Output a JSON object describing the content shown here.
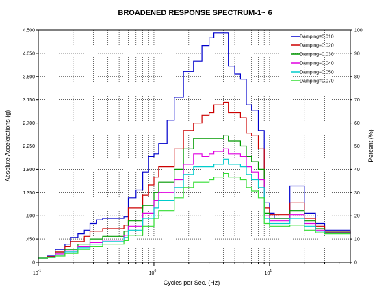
{
  "chart_data": {
    "type": "line",
    "title": "BROADENED RESPONSE SPECTRUM-1~ 6",
    "xlabel": "Cycles per Sec. (Hz)",
    "ylabel": "Absolute Accelerations (g)",
    "y2label": "Percent (%)",
    "xscale": "log",
    "xlim": [
      0.1,
      50
    ],
    "ylim": [
      0,
      4.5
    ],
    "y2lim": [
      0,
      100
    ],
    "grid": true,
    "legend_position": "top-right",
    "x_ticks": [
      {
        "value": 0.1,
        "base": "10",
        "exp": "-1"
      },
      {
        "value": 1,
        "base": "10",
        "exp": "0"
      },
      {
        "value": 10,
        "base": "10",
        "exp": "1"
      }
    ],
    "y_ticks": [
      "0",
      ".450",
      ".900",
      "1.350",
      "1.800",
      "2.250",
      "2.700",
      "3.150",
      "3.600",
      "4.050",
      "4.500"
    ],
    "y2_ticks": [
      "0",
      "10",
      "20",
      "30",
      "40",
      "50",
      "60",
      "70",
      "80",
      "90",
      "100"
    ],
    "series": [
      {
        "name": "Damping=0.010",
        "color": "#0000cc",
        "points": [
          [
            0.1,
            0.08
          ],
          [
            0.12,
            0.12
          ],
          [
            0.14,
            0.25
          ],
          [
            0.17,
            0.35
          ],
          [
            0.19,
            0.48
          ],
          [
            0.22,
            0.55
          ],
          [
            0.25,
            0.62
          ],
          [
            0.28,
            0.75
          ],
          [
            0.32,
            0.82
          ],
          [
            0.36,
            0.85
          ],
          [
            0.55,
            0.88
          ],
          [
            0.6,
            1.25
          ],
          [
            0.7,
            1.4
          ],
          [
            0.8,
            1.75
          ],
          [
            0.9,
            2.05
          ],
          [
            1.0,
            2.1
          ],
          [
            1.1,
            2.3
          ],
          [
            1.3,
            2.75
          ],
          [
            1.5,
            3.2
          ],
          [
            1.8,
            3.7
          ],
          [
            2.2,
            3.9
          ],
          [
            2.6,
            4.2
          ],
          [
            3.0,
            4.35
          ],
          [
            3.3,
            4.45
          ],
          [
            4.0,
            4.45
          ],
          [
            4.4,
            3.8
          ],
          [
            5.0,
            3.65
          ],
          [
            5.6,
            3.55
          ],
          [
            6.3,
            3.05
          ],
          [
            7.0,
            2.95
          ],
          [
            8.0,
            2.55
          ],
          [
            9.0,
            1.15
          ],
          [
            10.0,
            0.95
          ],
          [
            11.0,
            0.85
          ],
          [
            15.0,
            1.48
          ],
          [
            20.0,
            0.95
          ],
          [
            25.0,
            0.75
          ],
          [
            30.0,
            0.62
          ],
          [
            50.0,
            0.55
          ]
        ]
      },
      {
        "name": "Damping=0.020",
        "color": "#cc0000",
        "points": [
          [
            0.1,
            0.08
          ],
          [
            0.12,
            0.11
          ],
          [
            0.14,
            0.2
          ],
          [
            0.17,
            0.3
          ],
          [
            0.19,
            0.4
          ],
          [
            0.25,
            0.5
          ],
          [
            0.28,
            0.6
          ],
          [
            0.36,
            0.65
          ],
          [
            0.55,
            0.72
          ],
          [
            0.6,
            1.05
          ],
          [
            0.8,
            1.3
          ],
          [
            0.9,
            1.5
          ],
          [
            1.0,
            1.65
          ],
          [
            1.1,
            1.85
          ],
          [
            1.5,
            2.2
          ],
          [
            1.8,
            2.55
          ],
          [
            2.2,
            2.7
          ],
          [
            2.6,
            2.85
          ],
          [
            3.0,
            2.9
          ],
          [
            3.3,
            3.05
          ],
          [
            4.0,
            3.1
          ],
          [
            4.4,
            2.9
          ],
          [
            5.6,
            2.8
          ],
          [
            6.3,
            2.5
          ],
          [
            7.0,
            2.45
          ],
          [
            8.0,
            2.2
          ],
          [
            9.0,
            1.05
          ],
          [
            10.0,
            0.92
          ],
          [
            15.0,
            1.15
          ],
          [
            20.0,
            0.85
          ],
          [
            25.0,
            0.7
          ],
          [
            30.0,
            0.6
          ],
          [
            50.0,
            0.55
          ]
        ]
      },
      {
        "name": "Damping=0.030",
        "color": "#009900",
        "points": [
          [
            0.1,
            0.08
          ],
          [
            0.12,
            0.1
          ],
          [
            0.14,
            0.18
          ],
          [
            0.17,
            0.25
          ],
          [
            0.22,
            0.35
          ],
          [
            0.28,
            0.45
          ],
          [
            0.36,
            0.5
          ],
          [
            0.55,
            0.6
          ],
          [
            0.6,
            0.8
          ],
          [
            0.8,
            1.1
          ],
          [
            1.0,
            1.35
          ],
          [
            1.1,
            1.55
          ],
          [
            1.5,
            1.8
          ],
          [
            1.8,
            2.2
          ],
          [
            2.2,
            2.4
          ],
          [
            4.0,
            2.45
          ],
          [
            4.4,
            2.35
          ],
          [
            5.6,
            2.25
          ],
          [
            6.3,
            2.05
          ],
          [
            7.0,
            1.95
          ],
          [
            8.0,
            1.8
          ],
          [
            9.0,
            0.95
          ],
          [
            10.0,
            0.85
          ],
          [
            15.0,
            1.0
          ],
          [
            20.0,
            0.8
          ],
          [
            25.0,
            0.65
          ],
          [
            30.0,
            0.58
          ],
          [
            50.0,
            0.55
          ]
        ]
      },
      {
        "name": "Damping=0.040",
        "color": "#e000e0",
        "points": [
          [
            0.1,
            0.08
          ],
          [
            0.12,
            0.1
          ],
          [
            0.14,
            0.16
          ],
          [
            0.17,
            0.22
          ],
          [
            0.22,
            0.3
          ],
          [
            0.28,
            0.38
          ],
          [
            0.36,
            0.43
          ],
          [
            0.55,
            0.52
          ],
          [
            0.6,
            0.7
          ],
          [
            0.8,
            0.95
          ],
          [
            1.0,
            1.2
          ],
          [
            1.1,
            1.35
          ],
          [
            1.5,
            1.6
          ],
          [
            1.8,
            1.9
          ],
          [
            2.2,
            2.1
          ],
          [
            2.6,
            2.05
          ],
          [
            3.0,
            2.1
          ],
          [
            3.3,
            2.15
          ],
          [
            4.0,
            2.2
          ],
          [
            4.4,
            2.1
          ],
          [
            5.6,
            2.05
          ],
          [
            6.3,
            1.85
          ],
          [
            7.0,
            1.75
          ],
          [
            8.0,
            1.6
          ],
          [
            9.0,
            0.9
          ],
          [
            10.0,
            0.8
          ],
          [
            15.0,
            0.92
          ],
          [
            20.0,
            0.75
          ],
          [
            25.0,
            0.62
          ],
          [
            30.0,
            0.57
          ],
          [
            50.0,
            0.55
          ]
        ]
      },
      {
        "name": "Damping=0.050",
        "color": "#00cccc",
        "points": [
          [
            0.1,
            0.08
          ],
          [
            0.12,
            0.09
          ],
          [
            0.14,
            0.14
          ],
          [
            0.17,
            0.2
          ],
          [
            0.22,
            0.28
          ],
          [
            0.28,
            0.35
          ],
          [
            0.36,
            0.4
          ],
          [
            0.55,
            0.48
          ],
          [
            0.6,
            0.62
          ],
          [
            0.8,
            0.85
          ],
          [
            1.0,
            1.05
          ],
          [
            1.1,
            1.2
          ],
          [
            1.5,
            1.45
          ],
          [
            1.8,
            1.7
          ],
          [
            2.2,
            1.85
          ],
          [
            2.6,
            1.85
          ],
          [
            3.3,
            1.9
          ],
          [
            4.0,
            2.0
          ],
          [
            4.4,
            1.9
          ],
          [
            5.6,
            1.85
          ],
          [
            6.3,
            1.7
          ],
          [
            7.0,
            1.6
          ],
          [
            8.0,
            1.45
          ],
          [
            9.0,
            0.85
          ],
          [
            10.0,
            0.75
          ],
          [
            15.0,
            0.85
          ],
          [
            20.0,
            0.7
          ],
          [
            25.0,
            0.6
          ],
          [
            30.0,
            0.56
          ],
          [
            50.0,
            0.55
          ]
        ]
      },
      {
        "name": "Damping=0.070",
        "color": "#33dd33",
        "points": [
          [
            0.1,
            0.08
          ],
          [
            0.12,
            0.09
          ],
          [
            0.14,
            0.12
          ],
          [
            0.17,
            0.17
          ],
          [
            0.22,
            0.25
          ],
          [
            0.28,
            0.3
          ],
          [
            0.36,
            0.35
          ],
          [
            0.55,
            0.42
          ],
          [
            0.6,
            0.52
          ],
          [
            0.8,
            0.7
          ],
          [
            1.0,
            0.85
          ],
          [
            1.1,
            1.0
          ],
          [
            1.5,
            1.25
          ],
          [
            1.8,
            1.45
          ],
          [
            2.2,
            1.55
          ],
          [
            3.0,
            1.6
          ],
          [
            3.3,
            1.65
          ],
          [
            4.0,
            1.72
          ],
          [
            4.4,
            1.65
          ],
          [
            5.6,
            1.6
          ],
          [
            6.3,
            1.45
          ],
          [
            7.0,
            1.38
          ],
          [
            8.0,
            1.25
          ],
          [
            9.0,
            0.75
          ],
          [
            10.0,
            0.7
          ],
          [
            15.0,
            0.72
          ],
          [
            20.0,
            0.62
          ],
          [
            25.0,
            0.57
          ],
          [
            30.0,
            0.55
          ],
          [
            50.0,
            0.55
          ]
        ]
      }
    ]
  }
}
